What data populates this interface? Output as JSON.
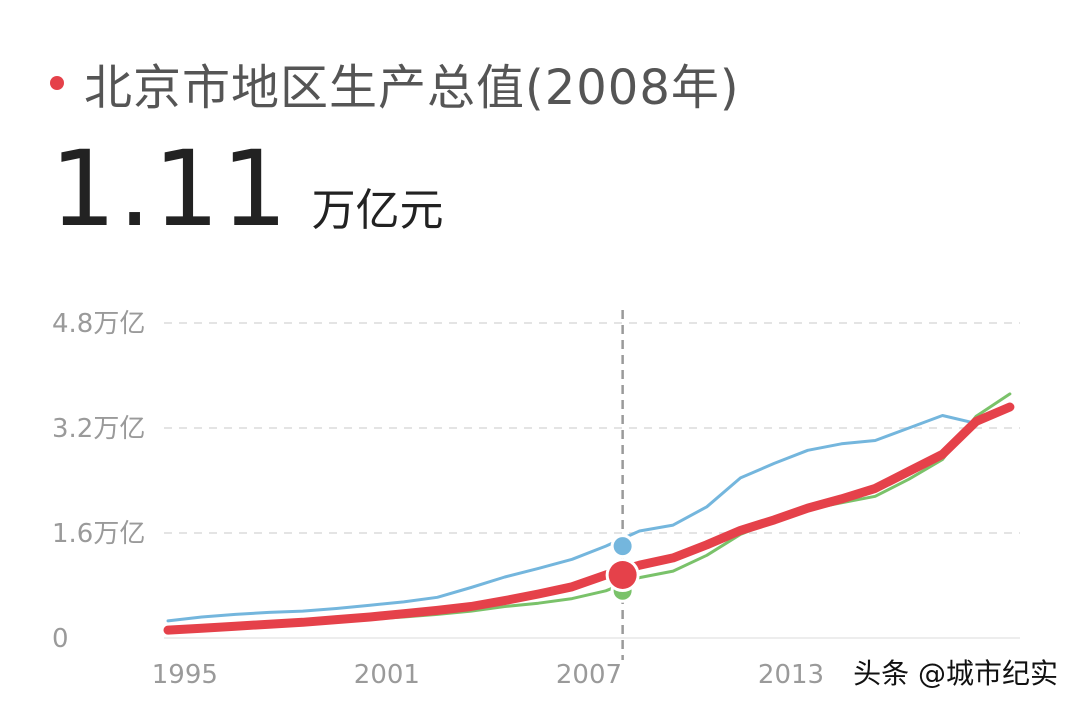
{
  "header": {
    "title": "北京市地区生产总值(2008年)",
    "dot_color": "#e5414a"
  },
  "headline": {
    "value": "1.11",
    "unit": "万亿元"
  },
  "watermark": "头条 @城市纪实",
  "chart_data": {
    "type": "line",
    "ylim": [
      0,
      4.8
    ],
    "yticks": [
      {
        "value": 0,
        "label": "0"
      },
      {
        "value": 1.6,
        "label": "1.6万亿"
      },
      {
        "value": 3.2,
        "label": "3.2万亿"
      },
      {
        "value": 4.8,
        "label": "4.8万亿"
      }
    ],
    "xlim": [
      1994.5,
      2019.8
    ],
    "xticks": [
      {
        "value": 1995,
        "label": "1995"
      },
      {
        "value": 2001,
        "label": "2001"
      },
      {
        "value": 2007,
        "label": "2007"
      },
      {
        "value": 2013,
        "label": "2013"
      }
    ],
    "highlight_year": 2008,
    "grid": true,
    "series": [
      {
        "color": "#74b6dd",
        "width": 3,
        "x": [
          1994.5,
          1995.5,
          1996.5,
          1997.5,
          1998.5,
          1999.5,
          2000.5,
          2001.5,
          2002.5,
          2003.5,
          2004.5,
          2005.5,
          2006.5,
          2007.5,
          2008.5,
          2009.5,
          2010.5,
          2011.5,
          2012.5,
          2013.5,
          2014.5,
          2015.5,
          2016.5,
          2017.5,
          2018.5
        ],
        "values": [
          0.26,
          0.32,
          0.36,
          0.39,
          0.41,
          0.45,
          0.5,
          0.55,
          0.62,
          0.77,
          0.93,
          1.06,
          1.2,
          1.4,
          1.63,
          1.72,
          2.0,
          2.44,
          2.66,
          2.86,
          2.96,
          3.01,
          3.2,
          3.39,
          3.27
        ]
      },
      {
        "color": "#7ac26a",
        "width": 3,
        "x": [
          1994.5,
          1995.5,
          1996.5,
          1997.5,
          1998.5,
          1999.5,
          2000.5,
          2001.5,
          2002.5,
          2003.5,
          2004.5,
          2005.5,
          2006.5,
          2007.5,
          2008.5,
          2009.5,
          2010.5,
          2011.5,
          2012.5,
          2013.5,
          2014.5,
          2015.5,
          2016.5,
          2017.5,
          2018.5,
          2019.5
        ],
        "values": [
          0.1,
          0.13,
          0.16,
          0.19,
          0.22,
          0.26,
          0.29,
          0.32,
          0.36,
          0.41,
          0.48,
          0.53,
          0.6,
          0.72,
          0.92,
          1.02,
          1.26,
          1.58,
          1.78,
          1.96,
          2.06,
          2.16,
          2.42,
          2.72,
          3.38,
          3.72
        ]
      },
      {
        "color": "#e5414a",
        "width": 9,
        "x": [
          1994.5,
          1995.5,
          1996.5,
          1997.5,
          1998.5,
          1999.5,
          2000.5,
          2001.5,
          2002.5,
          2003.5,
          2004.5,
          2005.5,
          2006.5,
          2007.5,
          2008.5,
          2009.5,
          2010.5,
          2011.5,
          2012.5,
          2013.5,
          2014.5,
          2015.5,
          2016.5,
          2017.5,
          2018.5,
          2019.5
        ],
        "values": [
          0.12,
          0.15,
          0.18,
          0.21,
          0.24,
          0.28,
          0.32,
          0.37,
          0.42,
          0.48,
          0.57,
          0.67,
          0.78,
          0.96,
          1.11,
          1.22,
          1.42,
          1.64,
          1.8,
          1.98,
          2.12,
          2.28,
          2.54,
          2.8,
          3.3,
          3.52
        ]
      }
    ]
  }
}
